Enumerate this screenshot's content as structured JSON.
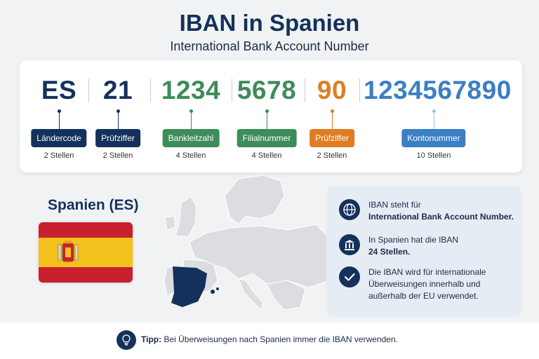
{
  "header": {
    "title": "IBAN in Spanien",
    "subtitle": "International Bank Account Number"
  },
  "iban_segments": [
    {
      "value": "ES",
      "label": "Ländercode",
      "length": "2 Stellen",
      "color": "#14315c"
    },
    {
      "value": "21",
      "label": "Prüfziffer",
      "length": "2 Stellen",
      "color": "#14315c"
    },
    {
      "value": "1234",
      "label": "Bankleitzahl",
      "length": "4 Stellen",
      "color": "#3d8c59"
    },
    {
      "value": "5678",
      "label": "Filialnummer",
      "length": "4 Stellen",
      "color": "#3d8c59"
    },
    {
      "value": "90",
      "label": "Prüfziffer",
      "length": "2 Stellen",
      "color": "#e07d22"
    },
    {
      "value": "1234567890",
      "label": "Kontonummer",
      "length": "10 Stellen",
      "color": "#3b7fc6"
    }
  ],
  "country": {
    "title": "Spanien (ES)",
    "flag_colors": {
      "red": "#c8202e",
      "yellow": "#f3c01e"
    }
  },
  "info": {
    "row1_text": "IBAN steht für",
    "row1_bold": "International Bank Account Number.",
    "row1_icon": "globe-icon",
    "row2_text": "In Spanien hat die IBAN",
    "row2_bold": "24 Stellen.",
    "row2_icon": "bank-icon",
    "row3_text": "Die IBAN wird für internationale Überweisungen innerhalb und außerhalb der EU verwendet.",
    "row3_icon": "check-icon"
  },
  "footer": {
    "tip_label": "Tipp:",
    "tip_text": " Bei Überweisungen nach Spanien immer die IBAN verwenden.",
    "icon": "lightbulb-icon"
  }
}
